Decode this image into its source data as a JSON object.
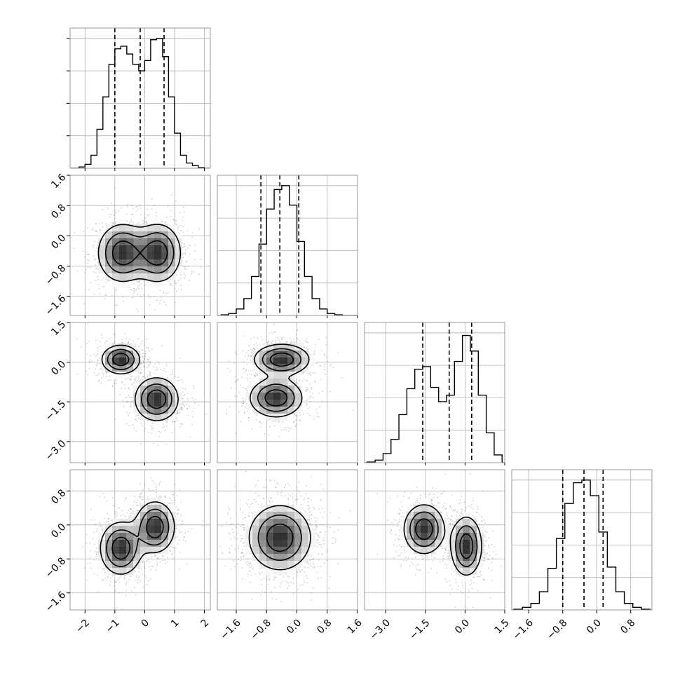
{
  "chart_data": [
    {
      "type": "histogram",
      "param_index": 0,
      "xlim": [
        -2.5,
        2.2
      ],
      "bins": [
        {
          "x": -2.3,
          "y": 0.0
        },
        {
          "x": -2.1,
          "y": 0.01
        },
        {
          "x": -1.9,
          "y": 0.03
        },
        {
          "x": -1.7,
          "y": 0.1
        },
        {
          "x": -1.5,
          "y": 0.3
        },
        {
          "x": -1.3,
          "y": 0.55
        },
        {
          "x": -1.1,
          "y": 0.8
        },
        {
          "x": -0.9,
          "y": 0.92
        },
        {
          "x": -0.7,
          "y": 0.94
        },
        {
          "x": -0.5,
          "y": 0.88
        },
        {
          "x": -0.3,
          "y": 0.8
        },
        {
          "x": -0.1,
          "y": 0.75
        },
        {
          "x": 0.1,
          "y": 0.83
        },
        {
          "x": 0.3,
          "y": 0.99
        },
        {
          "x": 0.5,
          "y": 1.0
        },
        {
          "x": 0.7,
          "y": 0.86
        },
        {
          "x": 0.9,
          "y": 0.55
        },
        {
          "x": 1.1,
          "y": 0.27
        },
        {
          "x": 1.3,
          "y": 0.1
        },
        {
          "x": 1.5,
          "y": 0.04
        },
        {
          "x": 1.7,
          "y": 0.02
        },
        {
          "x": 1.9,
          "y": 0.005
        }
      ],
      "quantiles": [
        -1.0,
        -0.15,
        0.65
      ]
    },
    {
      "type": "histogram",
      "param_index": 1,
      "xlim": [
        -2.1,
        1.6
      ],
      "bins": [
        {
          "x": -1.9,
          "y": 0.005
        },
        {
          "x": -1.7,
          "y": 0.015
        },
        {
          "x": -1.5,
          "y": 0.05
        },
        {
          "x": -1.3,
          "y": 0.13
        },
        {
          "x": -1.1,
          "y": 0.3
        },
        {
          "x": -0.9,
          "y": 0.55
        },
        {
          "x": -0.7,
          "y": 0.82
        },
        {
          "x": -0.5,
          "y": 0.97
        },
        {
          "x": -0.3,
          "y": 1.0
        },
        {
          "x": -0.1,
          "y": 0.85
        },
        {
          "x": 0.1,
          "y": 0.57
        },
        {
          "x": 0.3,
          "y": 0.3
        },
        {
          "x": 0.5,
          "y": 0.13
        },
        {
          "x": 0.7,
          "y": 0.05
        },
        {
          "x": 0.9,
          "y": 0.015
        },
        {
          "x": 1.1,
          "y": 0.005
        }
      ],
      "quantiles": [
        -0.95,
        -0.45,
        0.05
      ]
    },
    {
      "type": "histogram",
      "param_index": 2,
      "xlim": [
        -3.8,
        1.5
      ],
      "bins": [
        {
          "x": -3.55,
          "y": 0.005
        },
        {
          "x": -3.25,
          "y": 0.02
        },
        {
          "x": -2.95,
          "y": 0.07
        },
        {
          "x": -2.65,
          "y": 0.18
        },
        {
          "x": -2.35,
          "y": 0.37
        },
        {
          "x": -2.05,
          "y": 0.57
        },
        {
          "x": -1.75,
          "y": 0.72
        },
        {
          "x": -1.45,
          "y": 0.74
        },
        {
          "x": -1.15,
          "y": 0.58
        },
        {
          "x": -0.85,
          "y": 0.47
        },
        {
          "x": -0.55,
          "y": 0.52
        },
        {
          "x": -0.25,
          "y": 0.78
        },
        {
          "x": 0.05,
          "y": 0.98
        },
        {
          "x": 0.35,
          "y": 0.86
        },
        {
          "x": 0.65,
          "y": 0.52
        },
        {
          "x": 0.95,
          "y": 0.23
        },
        {
          "x": 1.25,
          "y": 0.06
        }
      ],
      "quantiles": [
        -1.6,
        -0.6,
        0.25
      ]
    },
    {
      "type": "histogram",
      "param_index": 3,
      "xlim": [
        -2.0,
        1.3
      ],
      "bins": [
        {
          "x": -1.85,
          "y": 0.005
        },
        {
          "x": -1.65,
          "y": 0.02
        },
        {
          "x": -1.45,
          "y": 0.05
        },
        {
          "x": -1.25,
          "y": 0.14
        },
        {
          "x": -1.05,
          "y": 0.32
        },
        {
          "x": -0.85,
          "y": 0.55
        },
        {
          "x": -0.65,
          "y": 0.82
        },
        {
          "x": -0.45,
          "y": 0.98
        },
        {
          "x": -0.25,
          "y": 1.0
        },
        {
          "x": -0.05,
          "y": 0.88
        },
        {
          "x": 0.15,
          "y": 0.6
        },
        {
          "x": 0.35,
          "y": 0.33
        },
        {
          "x": 0.55,
          "y": 0.14
        },
        {
          "x": 0.75,
          "y": 0.05
        },
        {
          "x": 0.95,
          "y": 0.02
        },
        {
          "x": 1.15,
          "y": 0.005
        }
      ],
      "quantiles": [
        -0.8,
        -0.3,
        0.15
      ]
    },
    {
      "type": "scatter-density",
      "xparam": 0,
      "yparam": 1,
      "xlim": [
        -2.5,
        2.2
      ],
      "ylim": [
        -2.1,
        1.6
      ],
      "blobs": [
        {
          "cx": -0.75,
          "cy": -0.45,
          "sx": 0.45,
          "sy": 0.42,
          "w": 0.5
        },
        {
          "cx": 0.45,
          "cy": -0.45,
          "sx": 0.42,
          "sy": 0.42,
          "w": 0.5
        }
      ],
      "levels": [
        0.2,
        0.45,
        0.75
      ],
      "contour_hint": "two merged lobes"
    },
    {
      "type": "scatter-density",
      "xparam": 0,
      "yparam": 2,
      "xlim": [
        -2.5,
        2.2
      ],
      "ylim": [
        -3.8,
        1.5
      ],
      "blobs": [
        {
          "cx": -0.8,
          "cy": 0.1,
          "sx": 0.35,
          "sy": 0.3,
          "w": 0.5
        },
        {
          "cx": 0.4,
          "cy": -1.4,
          "sx": 0.4,
          "sy": 0.45,
          "w": 0.5
        }
      ],
      "levels": [
        0.2,
        0.45,
        0.75
      ],
      "contour_hint": "two separate islands"
    },
    {
      "type": "scatter-density",
      "xparam": 1,
      "yparam": 2,
      "xlim": [
        -2.1,
        1.6
      ],
      "ylim": [
        -3.8,
        1.5
      ],
      "blobs": [
        {
          "cx": -0.4,
          "cy": 0.1,
          "sx": 0.4,
          "sy": 0.32,
          "w": 0.5
        },
        {
          "cx": -0.55,
          "cy": -1.35,
          "sx": 0.38,
          "sy": 0.4,
          "w": 0.5
        }
      ],
      "levels": [
        0.2,
        0.45,
        0.75
      ],
      "contour_hint": "figure-eight"
    },
    {
      "type": "scatter-density",
      "xparam": 0,
      "yparam": 3,
      "xlim": [
        -2.5,
        2.2
      ],
      "ylim": [
        -2.0,
        1.3
      ],
      "blobs": [
        {
          "cx": -0.8,
          "cy": -0.55,
          "sx": 0.38,
          "sy": 0.34,
          "w": 0.5
        },
        {
          "cx": 0.35,
          "cy": -0.05,
          "sx": 0.36,
          "sy": 0.33,
          "w": 0.5
        }
      ],
      "levels": [
        0.2,
        0.45,
        0.75
      ],
      "contour_hint": "two diagonal lobes"
    },
    {
      "type": "scatter-density",
      "xparam": 1,
      "yparam": 3,
      "xlim": [
        -2.1,
        1.6
      ],
      "ylim": [
        -2.0,
        1.3
      ],
      "blobs": [
        {
          "cx": -0.45,
          "cy": -0.3,
          "sx": 0.45,
          "sy": 0.42,
          "w": 1.0
        }
      ],
      "levels": [
        0.2,
        0.45,
        0.75
      ],
      "contour_hint": "single round blob"
    },
    {
      "type": "scatter-density",
      "xparam": 2,
      "yparam": 3,
      "xlim": [
        -3.8,
        1.5
      ],
      "ylim": [
        -2.0,
        1.3
      ],
      "blobs": [
        {
          "cx": -1.55,
          "cy": -0.1,
          "sx": 0.42,
          "sy": 0.32,
          "w": 0.5
        },
        {
          "cx": 0.05,
          "cy": -0.5,
          "sx": 0.32,
          "sy": 0.38,
          "w": 0.5
        }
      ],
      "levels": [
        0.2,
        0.45,
        0.75
      ],
      "contour_hint": "two side-by-side lobes"
    }
  ],
  "axes": {
    "x_ticks": [
      [
        "−2",
        "−1",
        "0",
        "1",
        "2"
      ],
      [
        "−1.6",
        "−0.8",
        "0.0",
        "0.8",
        "1.6"
      ],
      [
        "−3.0",
        "−1.5",
        "0.0",
        "1.5"
      ],
      [
        "−1.6",
        "−0.8",
        "0.0",
        "0.8"
      ]
    ],
    "y_ticks": [
      null,
      [
        "1.6",
        "0.8",
        "0.0",
        "−0.8",
        "−1.6"
      ],
      [
        "1.5",
        "0.0",
        "−1.5",
        "−3.0"
      ],
      [
        "0.8",
        "0.0",
        "−0.8",
        "−1.6"
      ]
    ]
  },
  "style": {
    "point_color": "#555555",
    "contour_color": "#000000",
    "grid_color": "#b0b0b0",
    "frame_color": "#999999"
  }
}
